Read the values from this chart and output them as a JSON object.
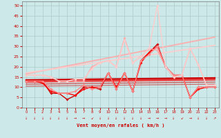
{
  "xlabel": "Vent moyen/en rafales ( km/h )",
  "background_color": "#cce8e8",
  "grid_color": "#aacccc",
  "x_ticks": [
    0,
    1,
    2,
    3,
    4,
    5,
    6,
    7,
    8,
    9,
    10,
    11,
    12,
    13,
    14,
    15,
    16,
    17,
    18,
    19,
    20,
    21,
    22,
    23
  ],
  "ylim": [
    0,
    52
  ],
  "yticks": [
    0,
    5,
    10,
    15,
    20,
    25,
    30,
    35,
    40,
    45,
    50
  ],
  "lines": [
    {
      "x": [
        0,
        1,
        2,
        3,
        4,
        5,
        6,
        7,
        8,
        9,
        10,
        11,
        12,
        13,
        14,
        15,
        16,
        17,
        18,
        19,
        20,
        21,
        22,
        23
      ],
      "y": [
        13,
        13,
        13,
        7,
        7,
        4,
        6,
        10,
        10,
        9,
        17,
        9,
        17,
        8,
        23,
        27,
        31,
        20,
        16,
        16,
        5,
        10,
        10,
        10
      ],
      "color": "#cc0000",
      "lw": 1.0,
      "marker": "D",
      "ms": 2.0,
      "alpha": 1.0,
      "zorder": 5
    },
    {
      "x": [
        0,
        1,
        2,
        3,
        4,
        5,
        6,
        7,
        8,
        9,
        10,
        11,
        12,
        13,
        14,
        15,
        16,
        17,
        18,
        19,
        20,
        21,
        22,
        23
      ],
      "y": [
        13,
        13,
        12,
        8,
        7,
        7,
        6,
        9,
        10,
        10,
        17,
        10,
        17,
        8,
        22,
        27,
        30,
        20,
        15,
        16,
        5,
        9,
        10,
        10
      ],
      "color": "#ff0000",
      "lw": 1.0,
      "marker": "D",
      "ms": 2.0,
      "alpha": 1.0,
      "zorder": 5
    },
    {
      "x": [
        0,
        1,
        2,
        3,
        4,
        5,
        6,
        7,
        8,
        9,
        10,
        11,
        12,
        13,
        14,
        15,
        16,
        17,
        18,
        19,
        20,
        21,
        22,
        23
      ],
      "y": [
        16,
        16,
        16,
        15,
        13,
        13,
        13,
        13,
        20,
        22,
        23,
        20,
        34,
        22,
        25,
        29,
        28,
        20,
        15,
        16,
        29,
        21,
        11,
        11
      ],
      "color": "#ffaaaa",
      "lw": 1.0,
      "marker": "D",
      "ms": 2.0,
      "alpha": 1.0,
      "zorder": 5
    },
    {
      "x": [
        0,
        1,
        2,
        3,
        4,
        5,
        6,
        7,
        8,
        9,
        10,
        11,
        12,
        13,
        14,
        15,
        16,
        17,
        18,
        19,
        20,
        21,
        22,
        23
      ],
      "y": [
        13,
        13,
        13,
        9,
        7,
        7,
        8,
        11,
        9,
        10,
        17,
        9,
        17,
        8,
        23,
        26,
        30,
        20,
        16,
        16,
        5,
        10,
        10,
        10
      ],
      "color": "#ff8888",
      "lw": 1.0,
      "marker": "D",
      "ms": 2.0,
      "alpha": 1.0,
      "zorder": 5
    },
    {
      "x": [
        0,
        1,
        2,
        3,
        4,
        5,
        6,
        7,
        8,
        9,
        10,
        11,
        12,
        13,
        14,
        15,
        16,
        17,
        18,
        19,
        20,
        21,
        22,
        23
      ],
      "y": [
        16,
        16,
        16,
        15,
        13,
        13,
        14,
        14,
        19,
        22,
        23,
        20,
        33,
        22,
        25,
        29,
        50,
        20,
        15,
        16,
        29,
        21,
        11,
        11
      ],
      "color": "#ffcccc",
      "lw": 1.0,
      "marker": "D",
      "ms": 2.0,
      "alpha": 1.0,
      "zorder": 5
    },
    {
      "x": [
        0,
        23
      ],
      "y": [
        13.5,
        14.5
      ],
      "color": "#cc0000",
      "lw": 1.8,
      "marker": null,
      "ms": 0,
      "alpha": 1.0,
      "zorder": 3
    },
    {
      "x": [
        0,
        23
      ],
      "y": [
        13.0,
        14.0
      ],
      "color": "#dd3333",
      "lw": 1.4,
      "marker": null,
      "ms": 0,
      "alpha": 1.0,
      "zorder": 3
    },
    {
      "x": [
        0,
        23
      ],
      "y": [
        12.5,
        13.5
      ],
      "color": "#ee4444",
      "lw": 1.2,
      "marker": null,
      "ms": 0,
      "alpha": 1.0,
      "zorder": 3
    },
    {
      "x": [
        0,
        23
      ],
      "y": [
        16.5,
        34.5
      ],
      "color": "#ffaaaa",
      "lw": 1.4,
      "marker": null,
      "ms": 0,
      "alpha": 0.9,
      "zorder": 2
    },
    {
      "x": [
        0,
        23
      ],
      "y": [
        17.0,
        30.5
      ],
      "color": "#ffcccc",
      "lw": 1.4,
      "marker": null,
      "ms": 0,
      "alpha": 0.9,
      "zorder": 2
    },
    {
      "x": [
        0,
        23
      ],
      "y": [
        11.5,
        12.5
      ],
      "color": "#cc0000",
      "lw": 1.0,
      "marker": null,
      "ms": 0,
      "alpha": 0.6,
      "zorder": 2
    },
    {
      "x": [
        0,
        23
      ],
      "y": [
        10.5,
        11.5
      ],
      "color": "#cc0000",
      "lw": 1.0,
      "marker": null,
      "ms": 0,
      "alpha": 0.5,
      "zorder": 2
    }
  ],
  "wind_arrows": [
    "↓",
    "↓",
    "↓",
    "↓",
    "↓",
    "↓",
    "→",
    "→",
    "↙",
    "↓",
    "↓",
    "↓",
    "↓",
    "↓",
    "↓",
    "→",
    "→",
    "→",
    "↓",
    "↙",
    "→",
    "↓",
    "↓",
    "↗"
  ]
}
